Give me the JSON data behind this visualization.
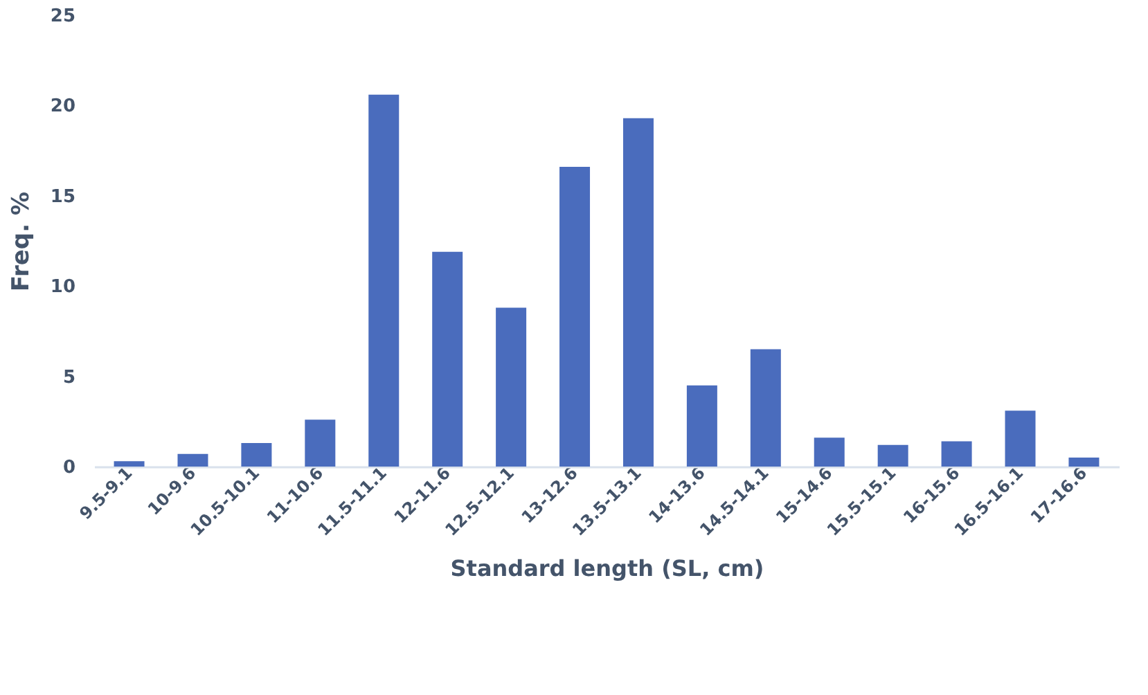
{
  "chart_data": {
    "type": "bar",
    "xlabel": "Standard length (SL, cm)",
    "ylabel": "Freq. %",
    "categories": [
      "9.5-9.1",
      "10-9.6",
      "10.5-10.1",
      "11-10.6",
      "11.5-11.1",
      "12-11.6",
      "12.5-12.1",
      "13-12.6",
      "13.5-13.1",
      "14-13.6",
      "14.5-14.1",
      "15-14.6",
      "15.5-15.1",
      "16-15.6",
      "16.5-16.1",
      "17-16.6"
    ],
    "values": [
      0.3,
      0.7,
      1.3,
      2.6,
      20.6,
      11.9,
      8.8,
      16.6,
      19.3,
      4.5,
      6.5,
      1.6,
      1.2,
      1.4,
      3.1,
      0.5
    ],
    "color": "#4a6cbd",
    "ylim": [
      0,
      25
    ],
    "yticks": [
      0,
      5,
      10,
      15,
      20,
      25
    ],
    "grid": false
  }
}
